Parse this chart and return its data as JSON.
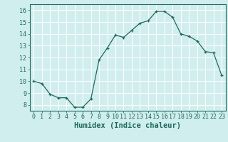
{
  "x": [
    0,
    1,
    2,
    3,
    4,
    5,
    6,
    7,
    8,
    9,
    10,
    11,
    12,
    13,
    14,
    15,
    16,
    17,
    18,
    19,
    20,
    21,
    22,
    23
  ],
  "y": [
    10.0,
    9.8,
    8.9,
    8.6,
    8.6,
    7.8,
    7.8,
    8.5,
    11.8,
    12.8,
    13.9,
    13.7,
    14.3,
    14.9,
    15.1,
    15.9,
    15.9,
    15.4,
    14.0,
    13.8,
    13.4,
    12.5,
    12.4,
    10.5
  ],
  "line_color": "#1a6b5e",
  "marker": "+",
  "marker_size": 3,
  "bg_color": "#d0eeee",
  "grid_color": "#ffffff",
  "xlabel": "Humidex (Indice chaleur)",
  "xlim": [
    -0.5,
    23.5
  ],
  "ylim": [
    7.5,
    16.5
  ],
  "yticks": [
    8,
    9,
    10,
    11,
    12,
    13,
    14,
    15,
    16
  ],
  "xticks": [
    0,
    1,
    2,
    3,
    4,
    5,
    6,
    7,
    8,
    9,
    10,
    11,
    12,
    13,
    14,
    15,
    16,
    17,
    18,
    19,
    20,
    21,
    22,
    23
  ],
  "tick_color": "#1a6b5e",
  "label_color": "#1a6b5e",
  "font_size_axis": 6,
  "font_size_label": 7.5
}
